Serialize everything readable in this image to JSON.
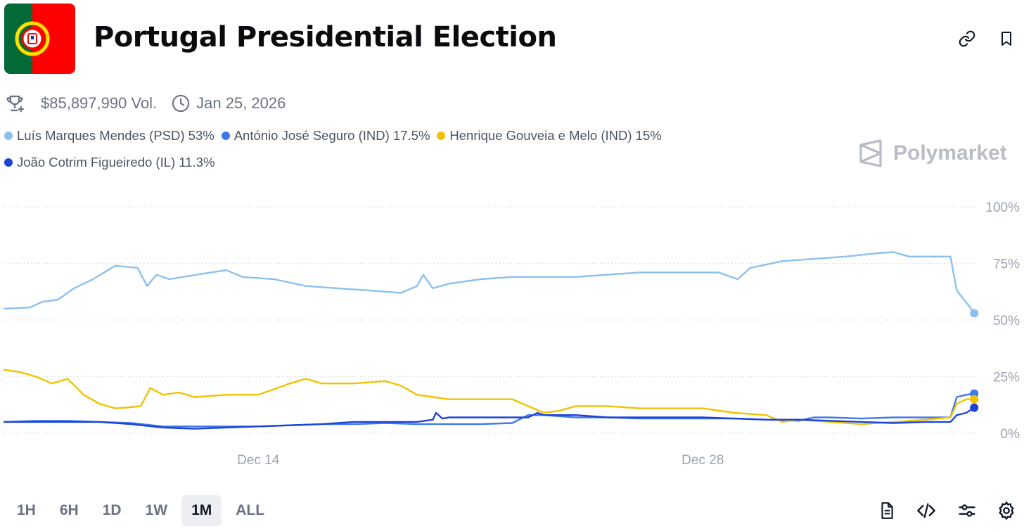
{
  "header": {
    "title": "Portugal Presidential Election",
    "link_button": "link-icon",
    "bookmark_button": "bookmark-icon"
  },
  "meta": {
    "volume": "$85,897,990 Vol.",
    "date": "Jan 25, 2026"
  },
  "legend": [
    {
      "label": "Luís Marques Mendes (PSD) 53%",
      "color": "#8cc0ee"
    },
    {
      "label": "António José Seguro (IND) 17.5%",
      "color": "#3f78e8"
    },
    {
      "label": "Henrique Gouveia e Melo (IND) 15%",
      "color": "#f2c200"
    },
    {
      "label": "João Cotrim Figueiredo (IL) 11.3%",
      "color": "#1c44d8"
    }
  ],
  "brand": "Polymarket",
  "ranges": [
    "1H",
    "6H",
    "1D",
    "1W",
    "1M",
    "ALL"
  ],
  "active_range": "1M",
  "colors": {
    "grid": "#d1d5db",
    "axis_text": "#9ca3af",
    "flag_green": "#046a38",
    "flag_red": "#ff0000"
  },
  "chart_data": {
    "type": "line",
    "title": "",
    "xlabel": "",
    "ylabel": "",
    "ylim": [
      0,
      100
    ],
    "y_ticks": [
      100,
      75,
      50,
      25,
      0
    ],
    "y_tick_labels": [
      "100%",
      "75%",
      "50%",
      "25%",
      "0%"
    ],
    "x_domain": [
      0,
      30.7
    ],
    "x_ticks": [
      {
        "x": 8,
        "label": "Dec 14"
      },
      {
        "x": 22,
        "label": "Dec 28"
      }
    ],
    "series": [
      {
        "name": "Luís Marques Mendes (PSD)",
        "color": "#8cc0ee",
        "last_value": 53,
        "points": [
          [
            0,
            55
          ],
          [
            0.8,
            55.5
          ],
          [
            1.2,
            58
          ],
          [
            1.7,
            59
          ],
          [
            2.2,
            64
          ],
          [
            2.8,
            68
          ],
          [
            3.5,
            74
          ],
          [
            4.2,
            73
          ],
          [
            4.5,
            65
          ],
          [
            4.8,
            70
          ],
          [
            5.2,
            68
          ],
          [
            6.5,
            71
          ],
          [
            7,
            72
          ],
          [
            7.5,
            69
          ],
          [
            8.5,
            68
          ],
          [
            9.5,
            65
          ],
          [
            10.5,
            64
          ],
          [
            11.5,
            63
          ],
          [
            12.5,
            62
          ],
          [
            13,
            65
          ],
          [
            13.2,
            70
          ],
          [
            13.5,
            64
          ],
          [
            14,
            66
          ],
          [
            15,
            68
          ],
          [
            16,
            69
          ],
          [
            17,
            69
          ],
          [
            18,
            69
          ],
          [
            19,
            70
          ],
          [
            20,
            71
          ],
          [
            21,
            71
          ],
          [
            22.5,
            71
          ],
          [
            23.1,
            68
          ],
          [
            23.5,
            73
          ],
          [
            24.5,
            76
          ],
          [
            25.5,
            77
          ],
          [
            26.5,
            78
          ],
          [
            27.5,
            79.5
          ],
          [
            28,
            80
          ],
          [
            28.5,
            78
          ],
          [
            29.5,
            78
          ],
          [
            29.8,
            78
          ],
          [
            30,
            63
          ],
          [
            30.4,
            56
          ],
          [
            30.55,
            53
          ]
        ]
      },
      {
        "name": "António José Seguro (IND)",
        "color": "#3f78e8",
        "last_value": 17.5,
        "points": [
          [
            0,
            5
          ],
          [
            1,
            5.5
          ],
          [
            2,
            5.5
          ],
          [
            3,
            5
          ],
          [
            4,
            4.5
          ],
          [
            5,
            3
          ],
          [
            6,
            3
          ],
          [
            7,
            3
          ],
          [
            8,
            3
          ],
          [
            9,
            3.5
          ],
          [
            10,
            4
          ],
          [
            11,
            4
          ],
          [
            12,
            4.5
          ],
          [
            13,
            4
          ],
          [
            14,
            4
          ],
          [
            15,
            4
          ],
          [
            16,
            4.5
          ],
          [
            16.5,
            8
          ],
          [
            17,
            8
          ],
          [
            18,
            7
          ],
          [
            19,
            7
          ],
          [
            20,
            6.5
          ],
          [
            21,
            6.5
          ],
          [
            22,
            6.5
          ],
          [
            23,
            6.5
          ],
          [
            24,
            6
          ],
          [
            25,
            5.5
          ],
          [
            25.5,
            7
          ],
          [
            26,
            7
          ],
          [
            27,
            6.5
          ],
          [
            28,
            7
          ],
          [
            29,
            7
          ],
          [
            29.8,
            7
          ],
          [
            30,
            16
          ],
          [
            30.3,
            17
          ],
          [
            30.55,
            17.5
          ]
        ]
      },
      {
        "name": "Henrique Gouveia e Melo (IND)",
        "color": "#f2c200",
        "last_value": 15,
        "points": [
          [
            0,
            28
          ],
          [
            0.5,
            27
          ],
          [
            1,
            25
          ],
          [
            1.5,
            22
          ],
          [
            2,
            24
          ],
          [
            2.5,
            17
          ],
          [
            3,
            13
          ],
          [
            3.5,
            11
          ],
          [
            4,
            11.5
          ],
          [
            4.3,
            12
          ],
          [
            4.6,
            20
          ],
          [
            5,
            17
          ],
          [
            5.5,
            18
          ],
          [
            6,
            16
          ],
          [
            7,
            17
          ],
          [
            8,
            17
          ],
          [
            9,
            22
          ],
          [
            9.5,
            24
          ],
          [
            10,
            22
          ],
          [
            11,
            22
          ],
          [
            12,
            23
          ],
          [
            12.5,
            21
          ],
          [
            13,
            17
          ],
          [
            13.5,
            16
          ],
          [
            14,
            15
          ],
          [
            15,
            15
          ],
          [
            16,
            15
          ],
          [
            16.5,
            12
          ],
          [
            17,
            9
          ],
          [
            17.5,
            10
          ],
          [
            18,
            12
          ],
          [
            19,
            12
          ],
          [
            20,
            11
          ],
          [
            21,
            11
          ],
          [
            22,
            11
          ],
          [
            23,
            9
          ],
          [
            24,
            8
          ],
          [
            24.5,
            5
          ],
          [
            25,
            6
          ],
          [
            26,
            5
          ],
          [
            27,
            4
          ],
          [
            28,
            5
          ],
          [
            29,
            6
          ],
          [
            29.8,
            7
          ],
          [
            30,
            13
          ],
          [
            30.3,
            15
          ],
          [
            30.55,
            15
          ]
        ]
      },
      {
        "name": "João Cotrim Figueiredo (IL)",
        "color": "#1c44d8",
        "last_value": 11.3,
        "points": [
          [
            0,
            5
          ],
          [
            2,
            5
          ],
          [
            3,
            5
          ],
          [
            4,
            4
          ],
          [
            5,
            2.5
          ],
          [
            6,
            2
          ],
          [
            7,
            2.5
          ],
          [
            8,
            3
          ],
          [
            9,
            3.5
          ],
          [
            10,
            4
          ],
          [
            11,
            5
          ],
          [
            12,
            5
          ],
          [
            13,
            5
          ],
          [
            13.5,
            6
          ],
          [
            13.6,
            9
          ],
          [
            13.8,
            6.5
          ],
          [
            14,
            7
          ],
          [
            15,
            7
          ],
          [
            16,
            7
          ],
          [
            16.5,
            7
          ],
          [
            16.8,
            9
          ],
          [
            17,
            8
          ],
          [
            18,
            8
          ],
          [
            19,
            7
          ],
          [
            20,
            7
          ],
          [
            21,
            7
          ],
          [
            22,
            7
          ],
          [
            23,
            6.5
          ],
          [
            24,
            6
          ],
          [
            25,
            6
          ],
          [
            26,
            5.5
          ],
          [
            27,
            5
          ],
          [
            28,
            4.5
          ],
          [
            29,
            5
          ],
          [
            29.8,
            5
          ],
          [
            30,
            8
          ],
          [
            30.3,
            9
          ],
          [
            30.55,
            11.3
          ]
        ]
      }
    ]
  }
}
